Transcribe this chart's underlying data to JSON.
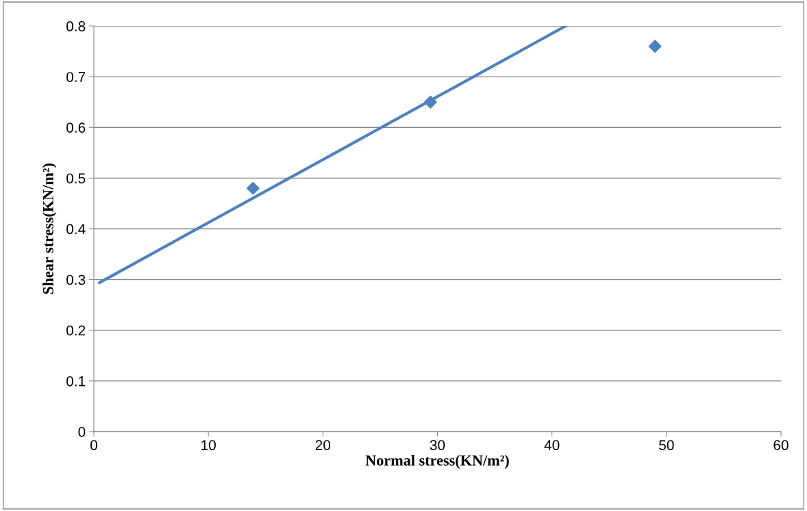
{
  "chart_data": {
    "type": "scatter",
    "xlabel": "Normal stress(KN/m²)",
    "ylabel": "Shear stress(KN/m²)",
    "xlim": [
      0,
      60
    ],
    "xticks": [
      0,
      10,
      20,
      30,
      40,
      50,
      60
    ],
    "ylim": [
      0,
      0.8
    ],
    "yticks": [
      0,
      0.1,
      0.2,
      0.3,
      0.4,
      0.5,
      0.6,
      0.7,
      0.8
    ],
    "grid": "y",
    "series": [
      {
        "color": "#4f81bd",
        "marker": "diamond",
        "x": [
          13.9,
          29.4,
          49.0
        ],
        "values": [
          0.48,
          0.65,
          0.76
        ]
      },
      {
        "type": "line",
        "color": "#4f81bd",
        "x": [
          0.5,
          41.2
        ],
        "values": [
          0.294,
          0.8
        ],
        "line_style": "solid"
      }
    ]
  }
}
